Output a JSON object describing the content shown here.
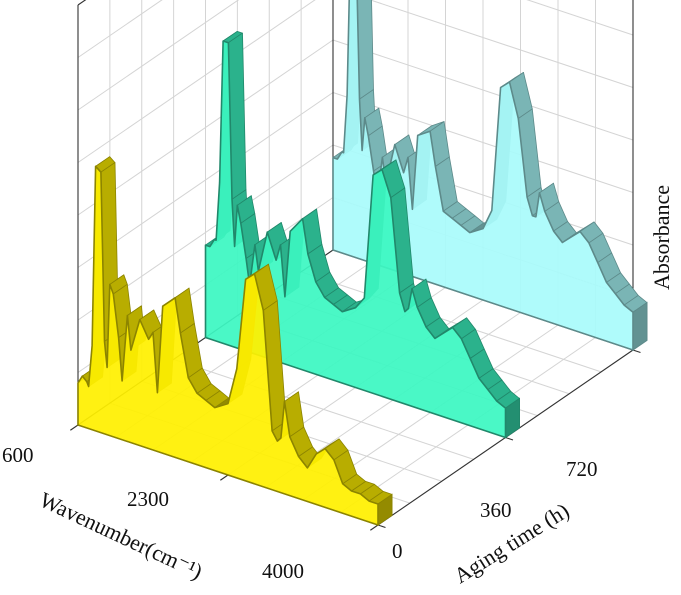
{
  "chart_data": {
    "type": "area",
    "subtype": "3d-waterfall",
    "xlabel": "Wavenumber(cm⁻¹)",
    "ylabel": "Aging time (h)",
    "zlabel": "Absorbance",
    "x_ticks": [
      "600",
      "2300",
      "4000"
    ],
    "y_ticks": [
      "0",
      "360",
      "720"
    ],
    "xlim": [
      600,
      4000
    ],
    "ylim": [
      0,
      720
    ],
    "zlim": [
      0,
      1.0
    ],
    "grid": true,
    "series": [
      {
        "aging_time": 0,
        "color": "#FFF000",
        "x": [
          600,
          650,
          700,
          720,
          760,
          800,
          860,
          900,
          930,
          960,
          1000,
          1060,
          1100,
          1160,
          1200,
          1300,
          1400,
          1450,
          1500,
          1560,
          1700,
          1760,
          1850,
          1950,
          2050,
          2150,
          2300,
          2400,
          2500,
          2600,
          2700,
          2800,
          2860,
          2900,
          2940,
          3000,
          3100,
          3200,
          3300,
          3400,
          3500,
          3600,
          3700,
          3800,
          3900,
          4000
        ],
        "values": [
          0.1,
          0.12,
          0.11,
          0.1,
          0.2,
          0.63,
          0.62,
          0.22,
          0.16,
          0.36,
          0.34,
          0.24,
          0.14,
          0.3,
          0.22,
          0.3,
          0.26,
          0.28,
          0.14,
          0.35,
          0.38,
          0.3,
          0.2,
          0.17,
          0.16,
          0.15,
          0.17,
          0.26,
          0.48,
          0.5,
          0.42,
          0.14,
          0.12,
          0.13,
          0.22,
          0.14,
          0.1,
          0.08,
          0.12,
          0.14,
          0.12,
          0.07,
          0.06,
          0.06,
          0.05,
          0.05
        ]
      },
      {
        "aging_time": 360,
        "color": "#3CF7C2",
        "x": [
          600,
          650,
          700,
          720,
          760,
          800,
          860,
          900,
          930,
          960,
          1000,
          1060,
          1100,
          1160,
          1200,
          1300,
          1400,
          1450,
          1500,
          1560,
          1700,
          1760,
          1850,
          1950,
          2050,
          2150,
          2300,
          2400,
          2500,
          2600,
          2700,
          2800,
          2860,
          2900,
          2940,
          3000,
          3100,
          3200,
          3300,
          3400,
          3500,
          3600,
          3700,
          3800,
          3900,
          4000
        ],
        "values": [
          0.22,
          0.22,
          0.24,
          0.24,
          0.38,
          0.72,
          0.72,
          0.35,
          0.24,
          0.34,
          0.3,
          0.22,
          0.16,
          0.26,
          0.2,
          0.3,
          0.24,
          0.28,
          0.16,
          0.32,
          0.36,
          0.28,
          0.22,
          0.19,
          0.18,
          0.17,
          0.19,
          0.22,
          0.52,
          0.54,
          0.48,
          0.26,
          0.22,
          0.23,
          0.28,
          0.24,
          0.2,
          0.18,
          0.2,
          0.22,
          0.2,
          0.16,
          0.12,
          0.1,
          0.08,
          0.07
        ]
      },
      {
        "aging_time": 720,
        "color": "#A9FBFB",
        "x": [
          600,
          650,
          700,
          720,
          760,
          800,
          860,
          900,
          930,
          960,
          1000,
          1060,
          1100,
          1160,
          1200,
          1300,
          1400,
          1450,
          1500,
          1560,
          1700,
          1760,
          1850,
          1950,
          2050,
          2150,
          2300,
          2400,
          2500,
          2600,
          2700,
          2800,
          2860,
          2900,
          2940,
          3000,
          3100,
          3200,
          3300,
          3400,
          3500,
          3600,
          3700,
          3800,
          3900,
          4000
        ],
        "values": [
          0.22,
          0.22,
          0.24,
          0.24,
          0.38,
          0.76,
          0.76,
          0.38,
          0.26,
          0.34,
          0.3,
          0.22,
          0.16,
          0.26,
          0.2,
          0.3,
          0.24,
          0.28,
          0.16,
          0.34,
          0.36,
          0.28,
          0.18,
          0.17,
          0.16,
          0.15,
          0.17,
          0.22,
          0.52,
          0.54,
          0.46,
          0.28,
          0.24,
          0.24,
          0.3,
          0.26,
          0.22,
          0.2,
          0.22,
          0.24,
          0.22,
          0.18,
          0.14,
          0.12,
          0.1,
          0.09
        ]
      }
    ]
  }
}
